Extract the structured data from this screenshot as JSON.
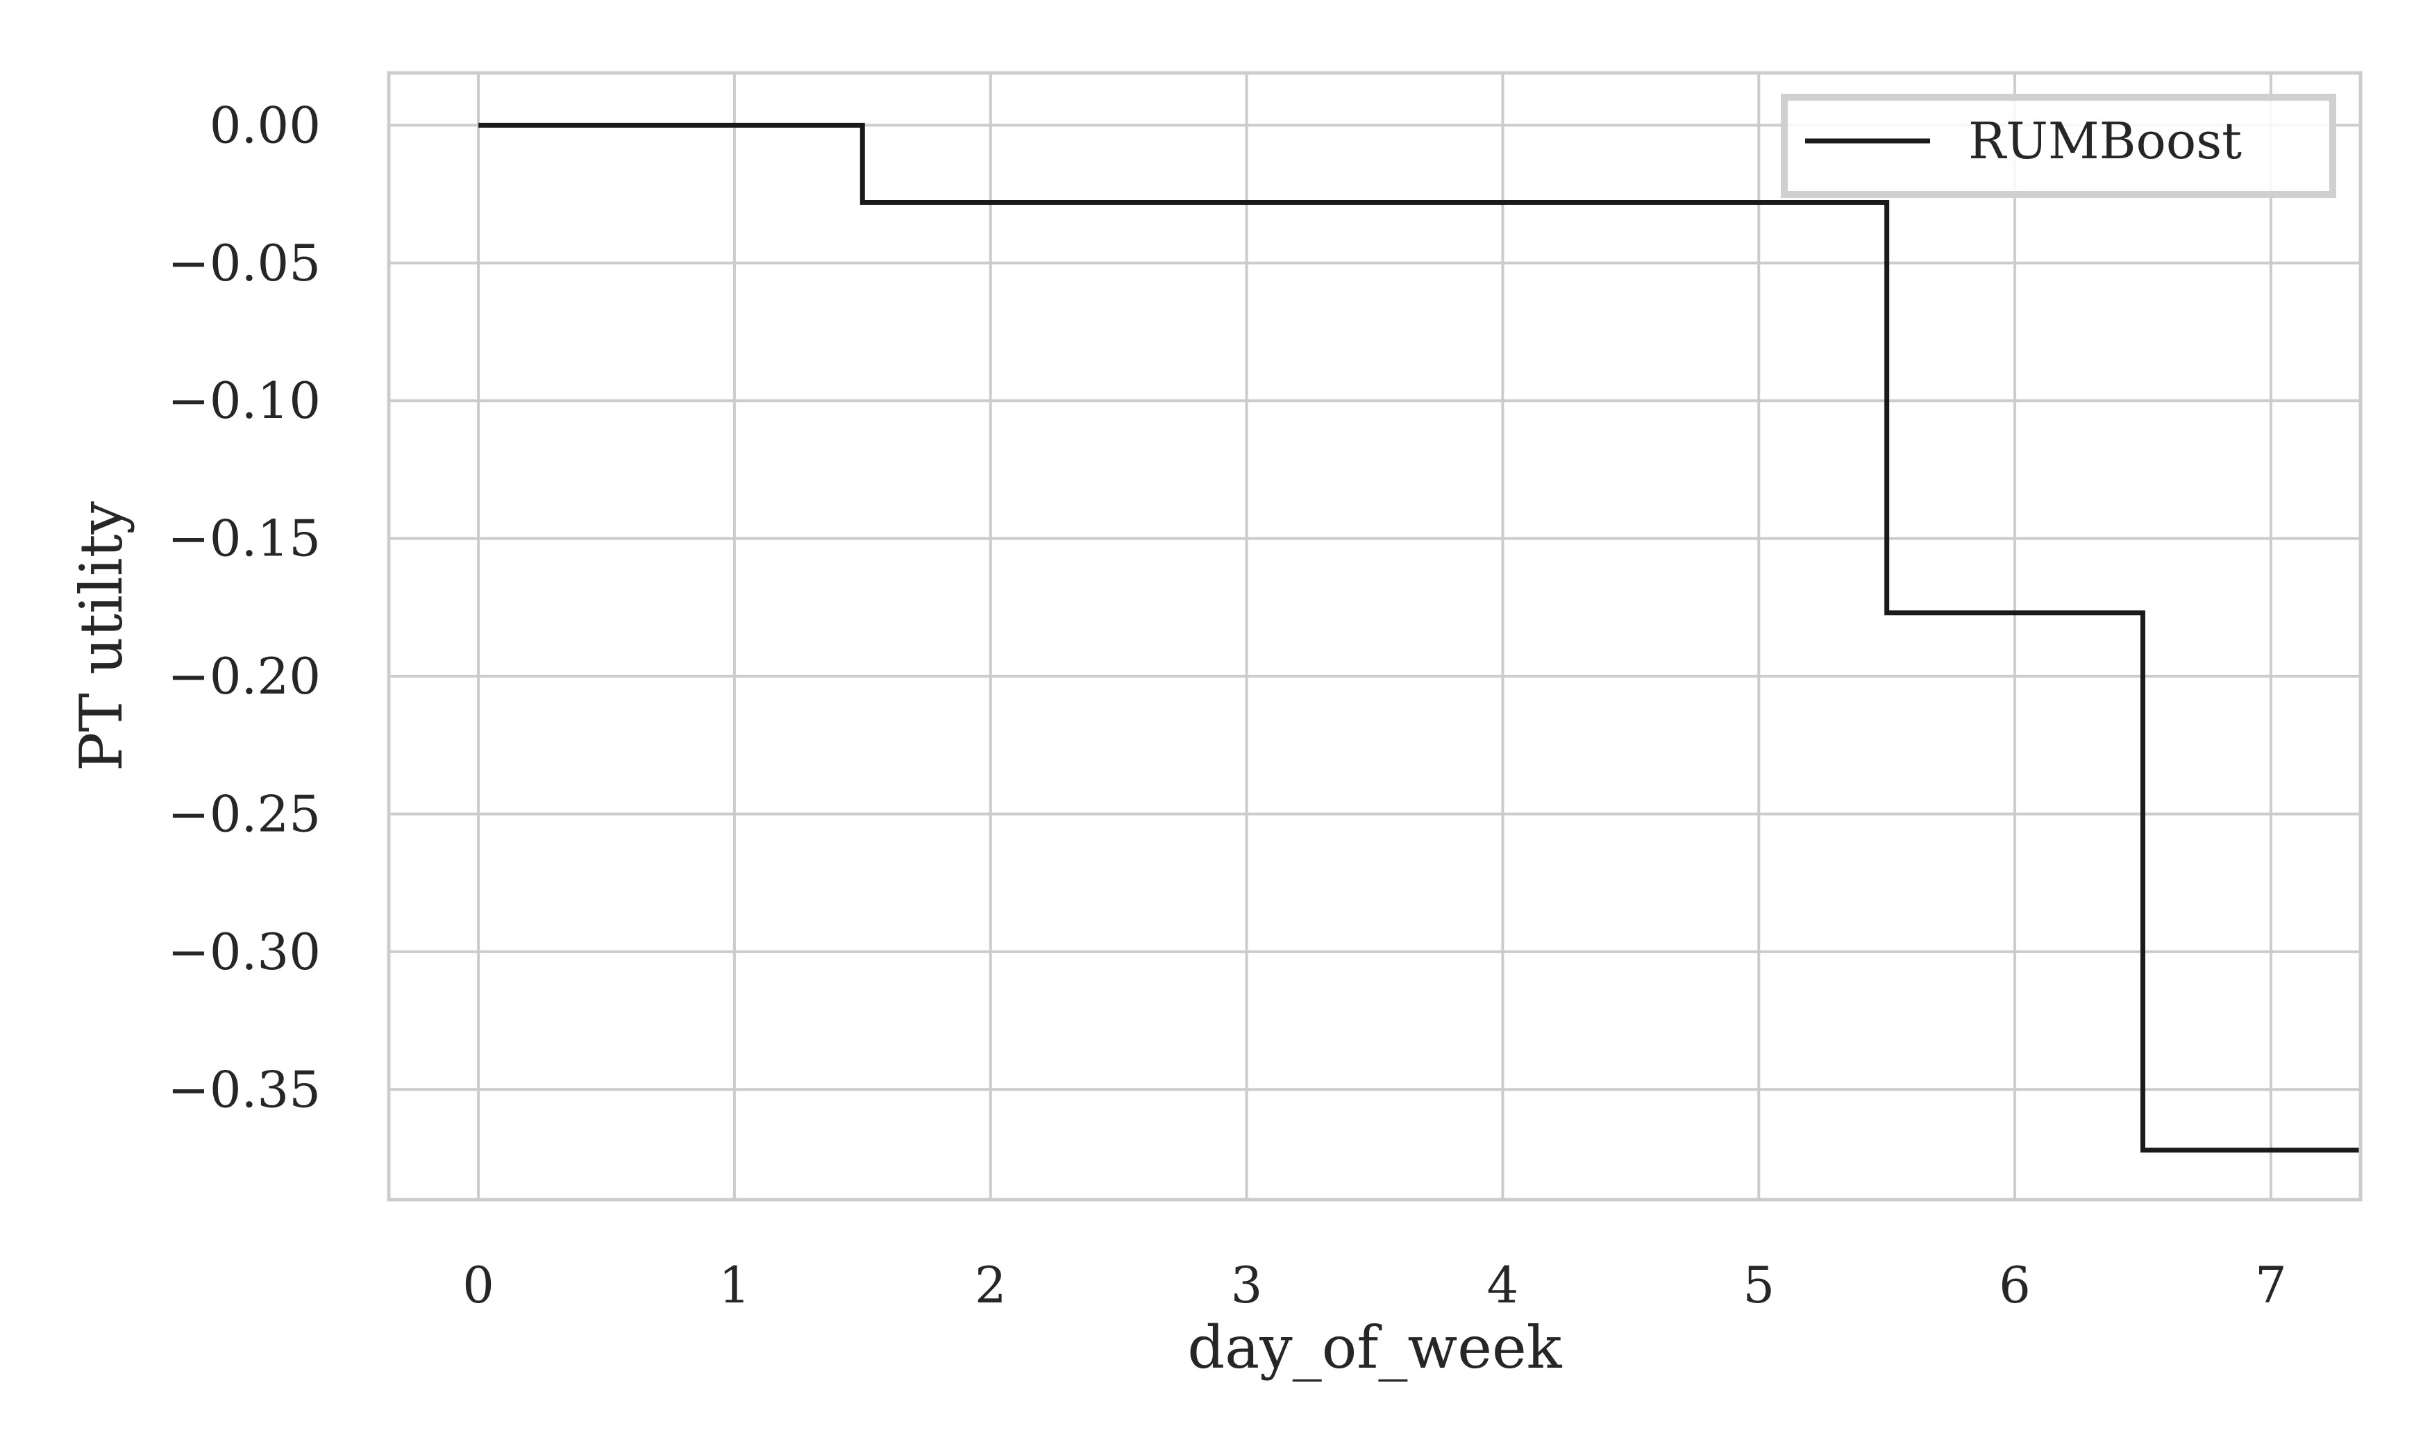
{
  "chart_data": {
    "type": "line",
    "drawstyle": "steps",
    "xlabel": "day_of_week",
    "ylabel": "PT utility",
    "xlim": [
      -0.35,
      7.35
    ],
    "ylim": [
      -0.39,
      0.019
    ],
    "xticks": [
      0,
      1,
      2,
      3,
      4,
      5,
      6,
      7
    ],
    "xtick_labels": [
      "0",
      "1",
      "2",
      "3",
      "4",
      "5",
      "6",
      "7"
    ],
    "yticks": [
      0.0,
      -0.05,
      -0.1,
      -0.15,
      -0.2,
      -0.25,
      -0.3,
      -0.35
    ],
    "ytick_labels": [
      "0.00",
      "−0.05",
      "−0.10",
      "−0.15",
      "−0.20",
      "−0.25",
      "−0.30",
      "−0.35"
    ],
    "grid": true,
    "legend_position": "top-right",
    "series": [
      {
        "name": "RUMBoost",
        "color": "#1a1a1a",
        "x": [
          0,
          1.5,
          1.5,
          5.5,
          5.5,
          6.5,
          6.5,
          7.35
        ],
        "y": [
          0,
          0,
          -0.028,
          -0.028,
          -0.177,
          -0.177,
          -0.372,
          -0.372
        ]
      }
    ]
  }
}
